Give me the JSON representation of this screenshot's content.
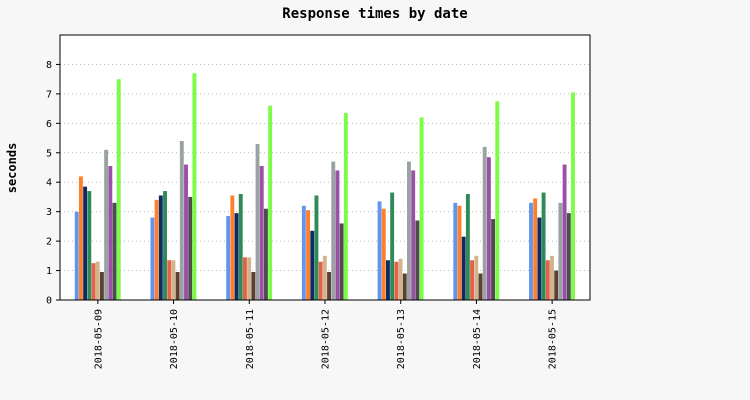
{
  "chart_data": {
    "type": "bar",
    "title": "Response times by date",
    "xlabel": "",
    "ylabel": "seconds",
    "ylim": [
      0,
      9
    ],
    "yticks": [
      0,
      1,
      2,
      3,
      4,
      5,
      6,
      7,
      8
    ],
    "grid": "horizontal dotted",
    "legend": "none",
    "categories": [
      "2018-05-09",
      "2018-05-10",
      "2018-05-11",
      "2018-05-12",
      "2018-05-13",
      "2018-05-14",
      "2018-05-15"
    ],
    "series": [
      {
        "color": "#6495ed",
        "values": [
          3.0,
          2.8,
          2.85,
          3.2,
          3.35,
          3.3,
          3.3
        ]
      },
      {
        "color": "#ff7f2a",
        "values": [
          4.2,
          3.4,
          3.55,
          3.05,
          3.1,
          3.2,
          3.45
        ]
      },
      {
        "color": "#0f2b66",
        "values": [
          3.85,
          3.55,
          2.95,
          2.35,
          1.35,
          2.15,
          2.8
        ]
      },
      {
        "color": "#2e8b57",
        "values": [
          3.7,
          3.7,
          3.6,
          3.55,
          3.65,
          3.6,
          3.65
        ]
      },
      {
        "color": "#e2634a",
        "values": [
          1.25,
          1.35,
          1.45,
          1.3,
          1.3,
          1.35,
          1.35
        ]
      },
      {
        "color": "#d2b48c",
        "values": [
          1.3,
          1.35,
          1.45,
          1.5,
          1.4,
          1.5,
          1.5
        ]
      },
      {
        "color": "#5c4033",
        "values": [
          0.95,
          0.95,
          0.95,
          0.95,
          0.9,
          0.9,
          1.0
        ]
      },
      {
        "color": "#9aa3a3",
        "values": [
          5.1,
          5.4,
          5.3,
          4.7,
          4.7,
          5.2,
          3.3
        ]
      },
      {
        "color": "#9b4fa6",
        "values": [
          4.55,
          4.6,
          4.55,
          4.4,
          4.4,
          4.85,
          4.6
        ]
      },
      {
        "color": "#4d4d4d",
        "values": [
          3.3,
          3.5,
          3.1,
          2.6,
          2.7,
          2.75,
          2.95
        ]
      },
      {
        "color": "#7cfc47",
        "values": [
          7.5,
          7.7,
          6.6,
          6.35,
          6.2,
          6.75,
          7.05
        ]
      }
    ]
  }
}
